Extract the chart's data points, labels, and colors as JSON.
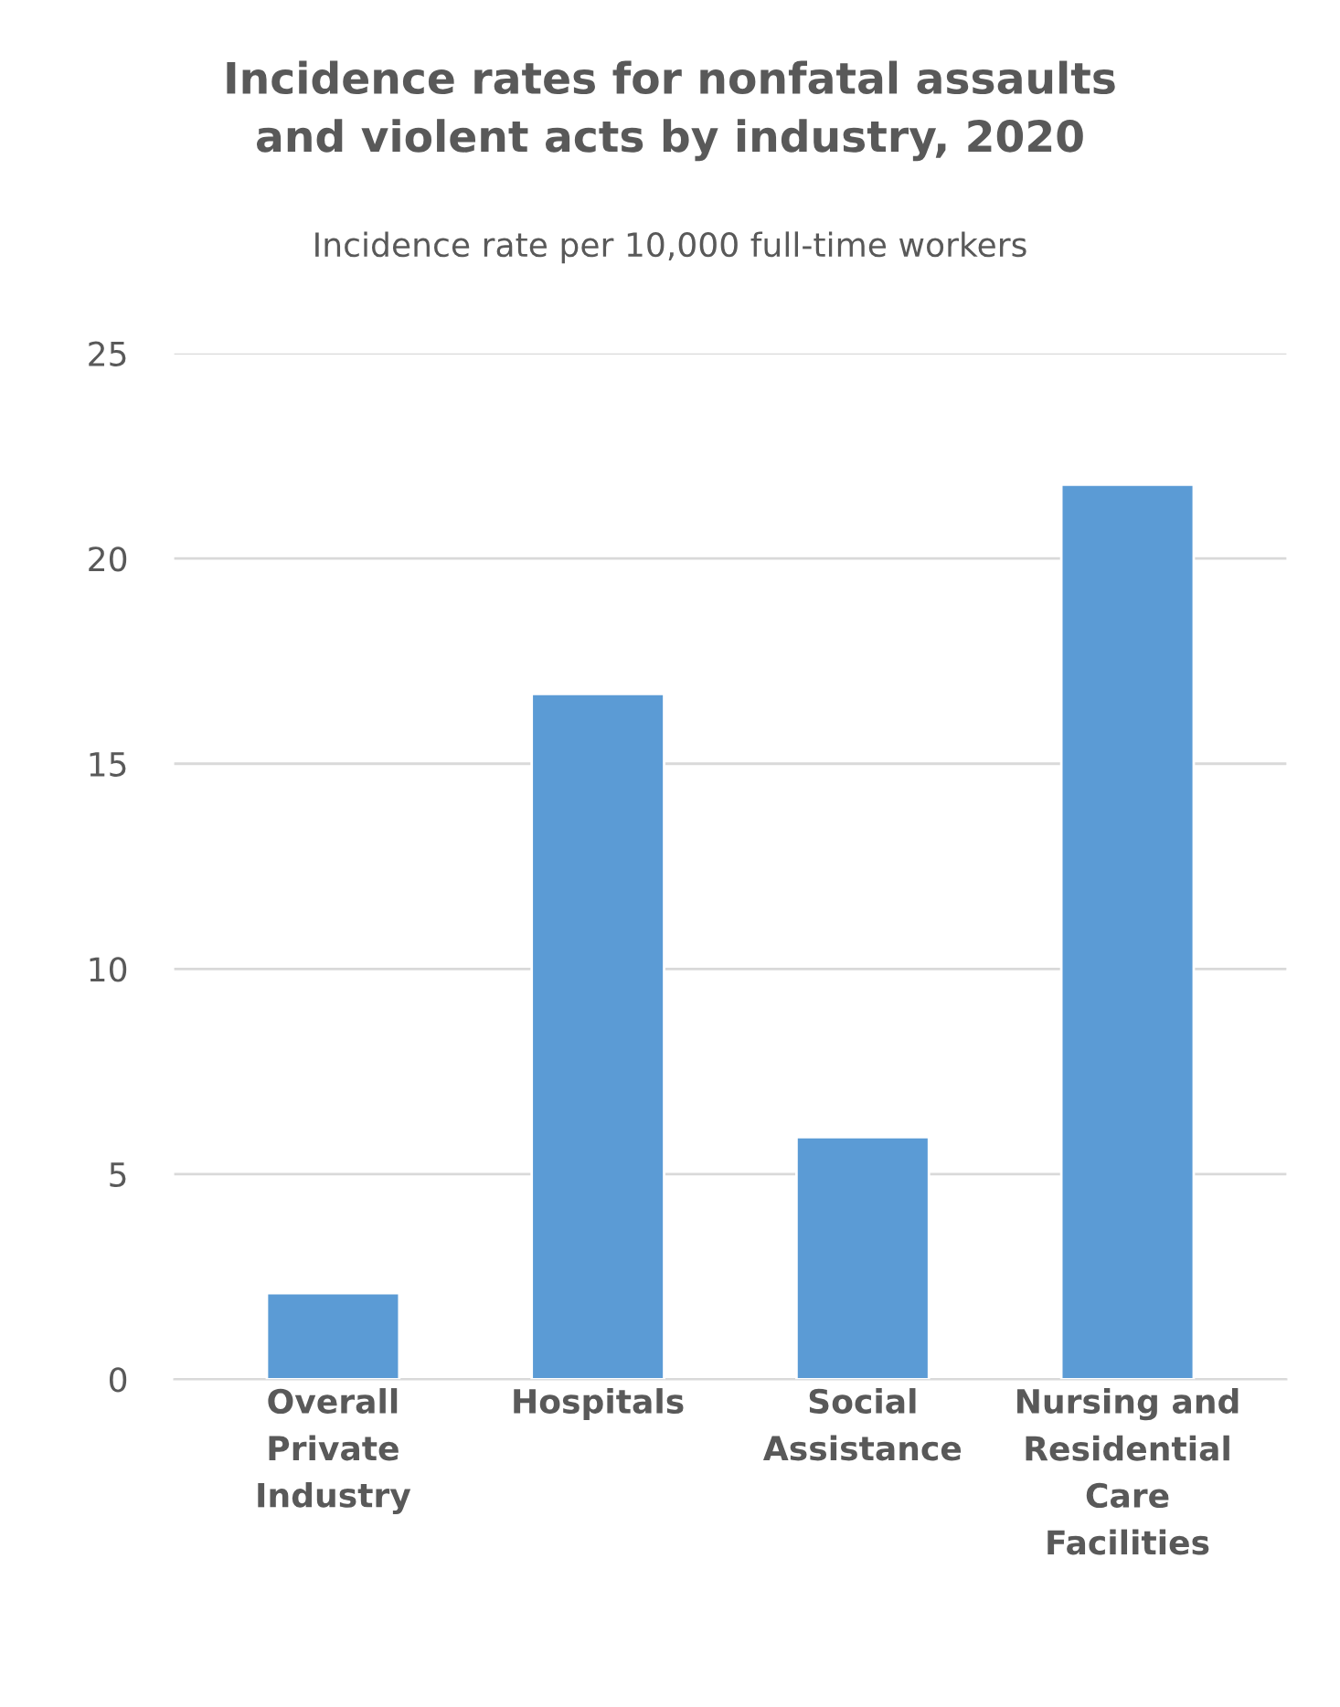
{
  "chart_data": {
    "type": "bar",
    "title": "Incidence rates for nonfatal assaults\nand violent acts by industry, 2020",
    "subtitle": "Incidence rate per 10,000 full-time workers",
    "categories": [
      "Overall\nPrivate\nIndustry",
      "Hospitals",
      "Social\nAssistance",
      "Nursing and\nResidential\nCare\nFacilities"
    ],
    "values": [
      2.1,
      16.7,
      5.9,
      21.8
    ],
    "color": "#5b9bd5",
    "ylim": [
      0,
      25
    ],
    "yticks": [
      0,
      5,
      10,
      15,
      20,
      25
    ],
    "grid": "y"
  }
}
